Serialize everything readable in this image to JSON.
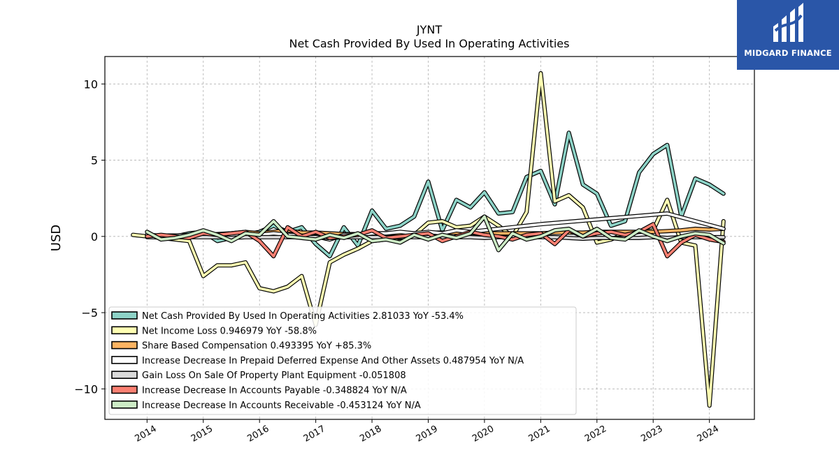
{
  "brand": {
    "name": "MIDGARD FINANCE",
    "color": "#2a56a8"
  },
  "chart_data": {
    "type": "line",
    "title": "JYNT",
    "subtitle": "Net Cash Provided By Used In Operating Activities",
    "ylabel": "USD",
    "xlabel": "",
    "ylim": [
      -12,
      11.8
    ],
    "xlim": [
      2013.25,
      2024.8
    ],
    "yticks": [
      -10,
      -5,
      0,
      5,
      10
    ],
    "yticklabels": [
      "−10",
      "−5",
      "0",
      "5",
      "10"
    ],
    "xticks": [
      2014,
      2015,
      2016,
      2017,
      2018,
      2019,
      2020,
      2021,
      2022,
      2023,
      2024
    ],
    "grid": true,
    "legend_position": "lower-left",
    "x": [
      2013.75,
      2014.0,
      2014.25,
      2014.5,
      2014.75,
      2015.0,
      2015.25,
      2015.5,
      2015.75,
      2016.0,
      2016.25,
      2016.5,
      2016.75,
      2017.0,
      2017.25,
      2017.5,
      2017.75,
      2018.0,
      2018.25,
      2018.5,
      2018.75,
      2019.0,
      2019.25,
      2019.5,
      2019.75,
      2020.0,
      2020.25,
      2020.5,
      2020.75,
      2021.0,
      2021.25,
      2021.5,
      2021.75,
      2022.0,
      2022.25,
      2022.5,
      2022.75,
      2023.0,
      2023.25,
      2023.5,
      2023.75,
      2024.0,
      2024.25
    ],
    "series": [
      {
        "name": "Net Cash Provided By Used In Operating Activities",
        "color": "#8dd3c7",
        "legend_label": "Net Cash Provided By Used In Operating Activities  2.81033 YoY -53.4%",
        "values": [
          null,
          0.1,
          -0.1,
          0.0,
          0.2,
          0.3,
          -0.3,
          -0.1,
          0.1,
          0.3,
          0.7,
          0.3,
          0.6,
          -0.5,
          -1.3,
          0.6,
          -0.6,
          1.7,
          0.5,
          0.7,
          1.3,
          3.6,
          0.4,
          2.4,
          1.9,
          2.9,
          1.5,
          1.6,
          3.9,
          4.3,
          2.1,
          6.8,
          3.4,
          2.8,
          0.7,
          1.0,
          4.2,
          5.4,
          6.0,
          1.3,
          3.8,
          3.4,
          2.8
        ]
      },
      {
        "name": "Net Income Loss",
        "color": "#ffffb3",
        "legend_label": "Net Income Loss  0.946979 YoY -58.8%",
        "values": [
          0.1,
          0.0,
          -0.1,
          -0.2,
          -0.3,
          -2.6,
          -1.9,
          -1.9,
          -1.7,
          -3.4,
          -3.6,
          -3.3,
          -2.6,
          -5.8,
          -1.7,
          -1.2,
          -0.8,
          -0.3,
          -0.2,
          -0.1,
          0.1,
          0.9,
          1.0,
          0.6,
          0.7,
          1.3,
          0.7,
          0.0,
          1.6,
          10.7,
          2.3,
          2.7,
          1.9,
          -0.4,
          -0.2,
          0.2,
          0.3,
          0.4,
          2.4,
          -0.4,
          -0.6,
          -11.1,
          1.0
        ]
      },
      {
        "name": "Share Based Compensation",
        "color": "#fdb462",
        "legend_label": "Share Based Compensation  0.493395 YoY +85.3%",
        "values": [
          null,
          0.05,
          0.05,
          0.06,
          0.08,
          0.1,
          0.15,
          0.2,
          0.3,
          0.2,
          0.3,
          0.4,
          0.25,
          0.25,
          0.2,
          0.15,
          0.15,
          0.2,
          0.2,
          0.2,
          0.2,
          0.25,
          0.25,
          0.25,
          0.2,
          0.2,
          0.2,
          0.2,
          0.2,
          0.2,
          0.25,
          0.25,
          0.25,
          0.3,
          0.3,
          0.3,
          0.3,
          0.3,
          0.35,
          0.4,
          0.5,
          0.45,
          0.5
        ]
      },
      {
        "name": "Increase Decrease In Prepaid Deferred Expense And Other Assets",
        "color": "#ffffff",
        "legend_label": "Increase Decrease In Prepaid Deferred Expense And Other Assets  0.487954 YoY N/A",
        "values": [
          null,
          0.1,
          0.05,
          0.05,
          0.1,
          0.2,
          0.0,
          0.1,
          0.2,
          0.1,
          0.2,
          0.1,
          0.05,
          0.0,
          -0.2,
          0.1,
          0.1,
          0.2,
          0.2,
          0.3,
          0.2,
          0.3,
          0.2,
          0.4,
          0.3,
          0.4,
          0.5,
          0.6,
          0.7,
          0.8,
          null,
          null,
          null,
          null,
          null,
          null,
          null,
          null,
          1.5,
          null,
          null,
          null,
          0.5
        ]
      },
      {
        "name": "Gain Loss On Sale Of Property Plant Equipment",
        "color": "#d9d9d9",
        "legend_label": "Gain Loss On Sale Of Property Plant Equipment  -0.051808",
        "values": [
          null,
          -0.05,
          -0.05,
          -0.05,
          -0.05,
          -0.05,
          -0.05,
          -0.1,
          -0.05,
          -0.05,
          -0.05,
          -0.05,
          -0.05,
          -0.05,
          -0.1,
          -0.05,
          -0.05,
          -0.05,
          -0.05,
          -0.05,
          -0.05,
          -0.05,
          -0.05,
          -0.05,
          -0.05,
          -0.1,
          -0.05,
          -0.05,
          -0.05,
          -0.05,
          -0.05,
          -0.1,
          -0.15,
          -0.1,
          -0.1,
          -0.1,
          -0.1,
          -0.05,
          -0.1,
          -0.05,
          -0.05,
          -0.05,
          -0.05
        ]
      },
      {
        "name": "Increase Decrease In Accounts Payable",
        "color": "#fb8072",
        "legend_label": "Increase Decrease In Accounts Payable  -0.348824 YoY N/A",
        "values": [
          null,
          0.0,
          0.1,
          0.0,
          -0.1,
          0.2,
          0.1,
          0.2,
          0.3,
          -0.3,
          -1.3,
          0.6,
          0.0,
          0.3,
          -0.1,
          0.0,
          0.1,
          0.4,
          -0.1,
          0.0,
          0.1,
          0.2,
          -0.3,
          0.0,
          0.3,
          0.1,
          0.0,
          -0.2,
          0.1,
          0.2,
          -0.5,
          0.4,
          0.0,
          0.2,
          0.3,
          0.1,
          0.3,
          0.8,
          -1.3,
          -0.4,
          0.1,
          -0.2,
          -0.35
        ]
      },
      {
        "name": "Increase Decrease In Accounts Receivable",
        "color": "#ccebc5",
        "legend_label": "Increase Decrease In Accounts Receivable  -0.453124 YoY N/A",
        "values": [
          null,
          0.3,
          -0.2,
          -0.1,
          0.1,
          0.4,
          0.1,
          -0.3,
          0.2,
          0.1,
          1.0,
          0.0,
          -0.1,
          -0.2,
          0.1,
          -0.1,
          0.2,
          -0.3,
          -0.2,
          -0.4,
          0.1,
          -0.2,
          0.1,
          -0.1,
          0.2,
          1.3,
          -0.9,
          0.2,
          -0.2,
          0.0,
          0.4,
          0.5,
          0.0,
          0.5,
          -0.1,
          -0.2,
          0.4,
          0.0,
          -0.3,
          0.0,
          0.2,
          0.1,
          -0.45
        ]
      }
    ]
  }
}
